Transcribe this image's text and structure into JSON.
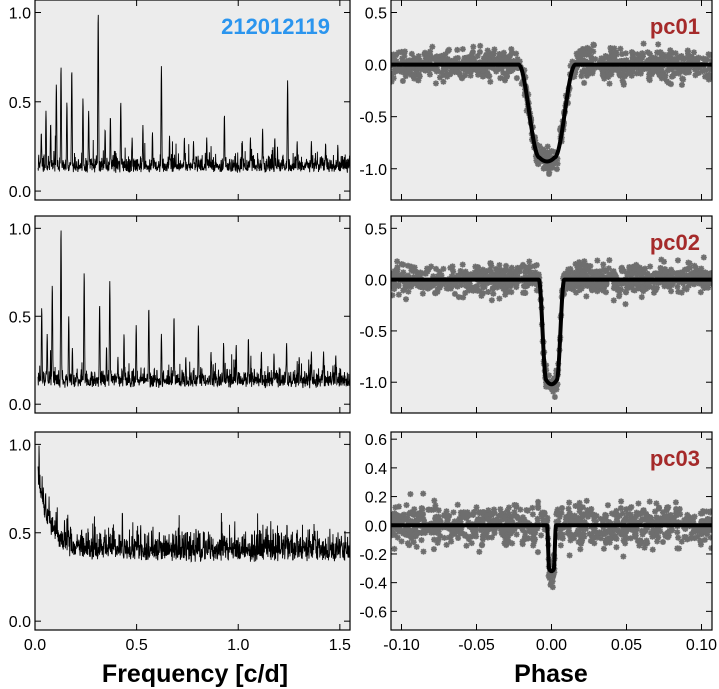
{
  "figure": {
    "star_id": "212012119",
    "colors": {
      "panel_bg": "#ececec",
      "star_id": "#2b95ee",
      "panel_label": "#a52a2a",
      "data_points": "#6e6e6e",
      "model": "#000000",
      "spectrum": "#000000"
    }
  },
  "chart_data": [
    {
      "type": "line",
      "panel": "periodogram-1",
      "xlabel": "",
      "ylabel": "",
      "xlim": [
        0.0,
        1.55
      ],
      "ylim": [
        -0.05,
        1.07
      ],
      "yticks": [
        "0.0",
        "0.5",
        "1.0"
      ],
      "xticks": [],
      "annotation": "212012119",
      "baseline": 0.1,
      "noise": 0.07,
      "peaks": [
        {
          "x": 0.031,
          "y": 0.33
        },
        {
          "x": 0.054,
          "y": 0.45
        },
        {
          "x": 0.077,
          "y": 0.38
        },
        {
          "x": 0.105,
          "y": 0.6
        },
        {
          "x": 0.128,
          "y": 0.7
        },
        {
          "x": 0.157,
          "y": 0.5
        },
        {
          "x": 0.181,
          "y": 0.68
        },
        {
          "x": 0.236,
          "y": 0.52
        },
        {
          "x": 0.264,
          "y": 0.45
        },
        {
          "x": 0.311,
          "y": 1.0
        },
        {
          "x": 0.345,
          "y": 0.35
        },
        {
          "x": 0.371,
          "y": 0.42
        },
        {
          "x": 0.422,
          "y": 0.5
        },
        {
          "x": 0.478,
          "y": 0.3
        },
        {
          "x": 0.531,
          "y": 0.37
        },
        {
          "x": 0.578,
          "y": 0.33
        },
        {
          "x": 0.622,
          "y": 0.7
        },
        {
          "x": 0.662,
          "y": 0.31
        },
        {
          "x": 0.735,
          "y": 0.3
        },
        {
          "x": 0.78,
          "y": 0.28
        },
        {
          "x": 0.845,
          "y": 0.3
        },
        {
          "x": 0.932,
          "y": 0.43
        },
        {
          "x": 1.02,
          "y": 0.28
        },
        {
          "x": 1.06,
          "y": 0.3
        },
        {
          "x": 1.12,
          "y": 0.35
        },
        {
          "x": 1.18,
          "y": 0.3
        },
        {
          "x": 1.243,
          "y": 0.62
        },
        {
          "x": 1.29,
          "y": 0.28
        },
        {
          "x": 1.36,
          "y": 0.28
        },
        {
          "x": 1.43,
          "y": 0.27
        },
        {
          "x": 1.49,
          "y": 0.26
        }
      ]
    },
    {
      "type": "line",
      "panel": "periodogram-2",
      "xlabel": "",
      "ylabel": "",
      "xlim": [
        0.0,
        1.55
      ],
      "ylim": [
        -0.05,
        1.07
      ],
      "yticks": [
        "0.0",
        "0.5",
        "1.0"
      ],
      "xticks": [],
      "baseline": 0.09,
      "noise": 0.08,
      "peaks": [
        {
          "x": 0.033,
          "y": 0.55
        },
        {
          "x": 0.06,
          "y": 0.4
        },
        {
          "x": 0.085,
          "y": 0.68
        },
        {
          "x": 0.128,
          "y": 1.0
        },
        {
          "x": 0.166,
          "y": 0.5
        },
        {
          "x": 0.184,
          "y": 0.32
        },
        {
          "x": 0.242,
          "y": 0.75
        },
        {
          "x": 0.318,
          "y": 0.57
        },
        {
          "x": 0.352,
          "y": 0.33
        },
        {
          "x": 0.368,
          "y": 0.7
        },
        {
          "x": 0.408,
          "y": 0.27
        },
        {
          "x": 0.438,
          "y": 0.4
        },
        {
          "x": 0.498,
          "y": 0.45
        },
        {
          "x": 0.56,
          "y": 0.55
        },
        {
          "x": 0.622,
          "y": 0.4
        },
        {
          "x": 0.684,
          "y": 0.5
        },
        {
          "x": 0.742,
          "y": 0.27
        },
        {
          "x": 0.804,
          "y": 0.45
        },
        {
          "x": 0.866,
          "y": 0.3
        },
        {
          "x": 0.928,
          "y": 0.35
        },
        {
          "x": 0.99,
          "y": 0.34
        },
        {
          "x": 1.05,
          "y": 0.38
        },
        {
          "x": 1.114,
          "y": 0.3
        },
        {
          "x": 1.176,
          "y": 0.29
        },
        {
          "x": 1.238,
          "y": 0.35
        },
        {
          "x": 1.3,
          "y": 0.27
        },
        {
          "x": 1.36,
          "y": 0.3
        },
        {
          "x": 1.42,
          "y": 0.3
        },
        {
          "x": 1.48,
          "y": 0.28
        }
      ]
    },
    {
      "type": "line",
      "panel": "periodogram-3",
      "xlabel": "Frequency [c/d]",
      "ylabel": "",
      "xlim": [
        0.0,
        1.55
      ],
      "ylim": [
        -0.05,
        1.07
      ],
      "yticks": [
        "0.0",
        "0.5",
        "1.0"
      ],
      "xticks": [
        "0.0",
        "0.5",
        "1.0",
        "1.5"
      ],
      "baseline": 0.33,
      "noise": 0.13,
      "lowfreq_excess": 0.55,
      "peaks": [
        {
          "x": 0.02,
          "y": 1.0
        },
        {
          "x": 0.035,
          "y": 0.82
        },
        {
          "x": 0.05,
          "y": 0.68
        },
        {
          "x": 0.1,
          "y": 0.52
        },
        {
          "x": 0.18,
          "y": 0.5
        },
        {
          "x": 0.34,
          "y": 0.48
        },
        {
          "x": 0.43,
          "y": 0.63
        },
        {
          "x": 0.52,
          "y": 0.55
        },
        {
          "x": 0.74,
          "y": 0.5
        },
        {
          "x": 0.86,
          "y": 0.5
        },
        {
          "x": 1.24,
          "y": 0.56
        },
        {
          "x": 1.29,
          "y": 0.52
        }
      ]
    },
    {
      "type": "scatter",
      "panel": "phase-pc01",
      "label": "pc01",
      "xlabel": "",
      "ylabel": "",
      "xlim": [
        -0.107,
        0.107
      ],
      "ylim": [
        -1.3,
        0.62
      ],
      "yticks": [
        "-1.0",
        "-0.5",
        "0.0",
        "0.5"
      ],
      "xticks": [],
      "model": {
        "depth": -0.93,
        "center": -0.003,
        "half_width_top": 0.019,
        "half_width_bottom": 0.005,
        "ingress": 0.011
      },
      "scatter": 0.07
    },
    {
      "type": "scatter",
      "panel": "phase-pc02",
      "label": "pc02",
      "xlabel": "",
      "ylabel": "",
      "xlim": [
        -0.107,
        0.107
      ],
      "ylim": [
        -1.3,
        0.62
      ],
      "yticks": [
        "-1.0",
        "-0.5",
        "0.0",
        "0.5"
      ],
      "xticks": [],
      "model": {
        "depth": -1.02,
        "center": 0.0,
        "half_width_top": 0.0085,
        "half_width_bottom": 0.0035,
        "ingress": 0.004
      },
      "scatter": 0.07
    },
    {
      "type": "scatter",
      "panel": "phase-pc03",
      "label": "pc03",
      "xlabel": "Phase",
      "ylabel": "",
      "xlim": [
        -0.107,
        0.107
      ],
      "ylim": [
        -0.73,
        0.65
      ],
      "yticks": [
        "-0.6",
        "-0.4",
        "-0.2",
        "0.0",
        "0.2",
        "0.4",
        "0.6"
      ],
      "xticks": [
        "-0.10",
        "-0.05",
        "0.00",
        "0.05",
        "0.10"
      ],
      "model": {
        "depth": -0.32,
        "center": 0.0,
        "half_width_top": 0.003,
        "half_width_bottom": 0.0015,
        "ingress": 0.0015
      },
      "scatter": 0.07
    }
  ]
}
